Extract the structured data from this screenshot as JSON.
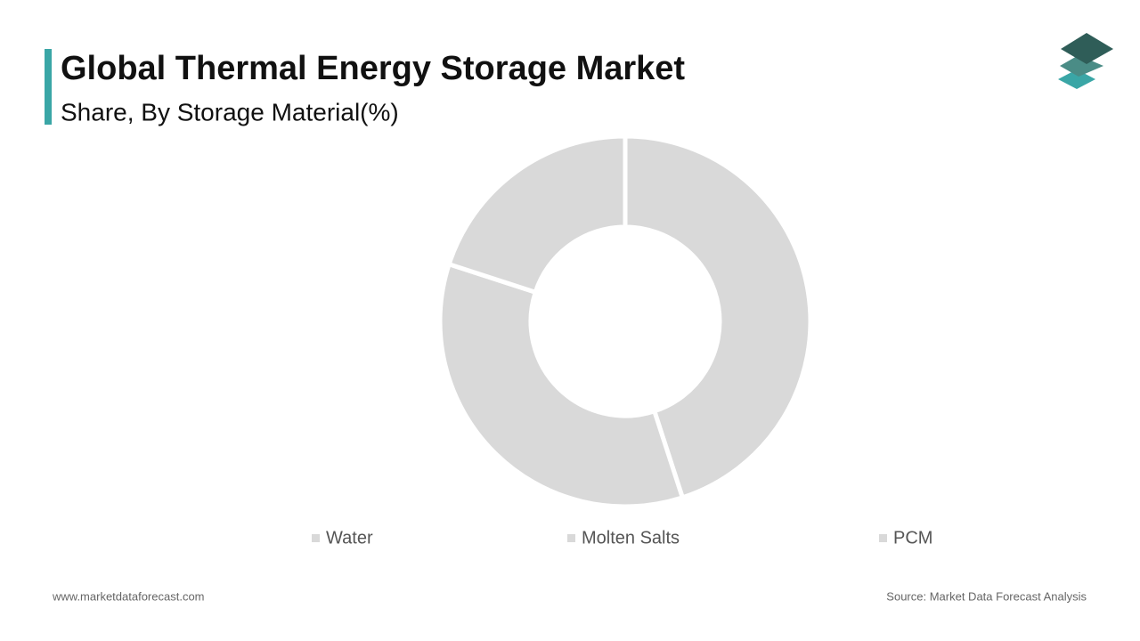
{
  "chart_data": {
    "type": "donut",
    "title": "Global Thermal Energy Storage Market",
    "subtitle": "Share, By Storage Material(%)",
    "categories": [
      "Water",
      "Molten Salts",
      "PCM"
    ],
    "values": [
      45,
      35,
      20
    ],
    "colors": [
      "#d9d9d9",
      "#d9d9d9",
      "#d9d9d9"
    ]
  },
  "footer": {
    "website": "www.marketdataforecast.com",
    "source": "Source: Market Data Forecast Analysis"
  }
}
